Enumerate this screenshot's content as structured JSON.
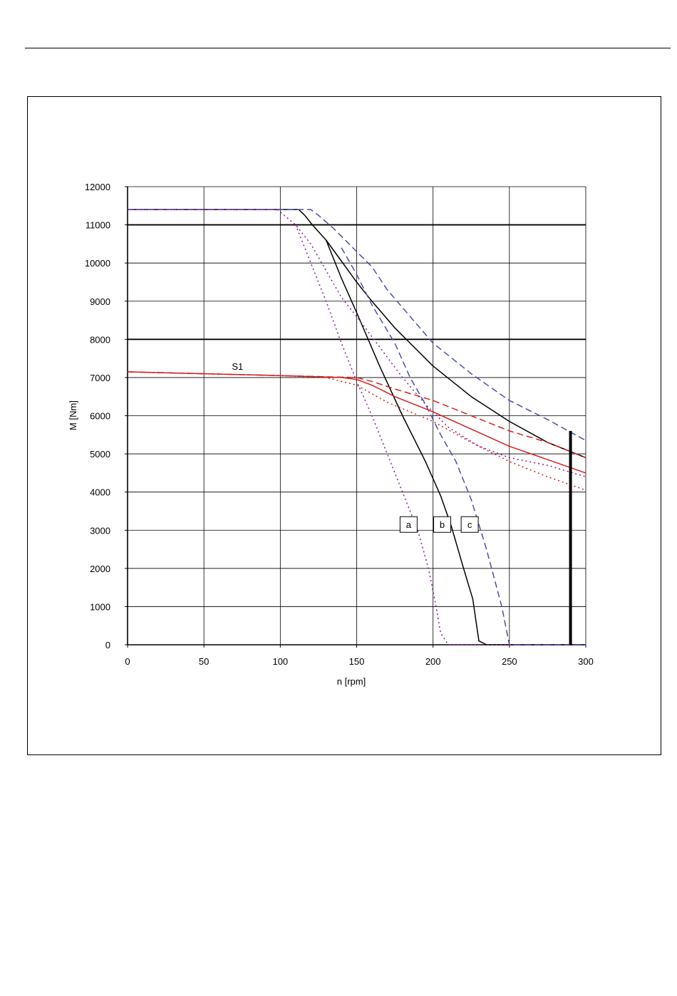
{
  "chart_data": {
    "type": "line",
    "xlabel": "n [rpm]",
    "ylabel": "M [Nm]",
    "xlim": [
      0,
      300
    ],
    "ylim": [
      0,
      12000
    ],
    "x_ticks": [
      "0",
      "50",
      "100",
      "150",
      "200",
      "250",
      "300"
    ],
    "y_ticks": [
      "0",
      "1000",
      "2000",
      "3000",
      "4000",
      "5000",
      "6000",
      "7000",
      "8000",
      "9000",
      "10000",
      "11000",
      "12000"
    ],
    "grid": true,
    "reference_lines": [
      {
        "y": 11000,
        "bold": true
      },
      {
        "y": 8000,
        "bold": true
      }
    ],
    "vertical_marker": {
      "x": 290,
      "y_top": 5600
    },
    "series": [
      {
        "color": "#000000",
        "dash": "solid",
        "points": [
          [
            0,
            11400
          ],
          [
            112,
            11400
          ],
          [
            116,
            11250
          ],
          [
            121,
            11000
          ],
          [
            130,
            10600
          ],
          [
            140,
            10050
          ],
          [
            150,
            9500
          ],
          [
            160,
            9000
          ],
          [
            175,
            8300
          ],
          [
            190,
            7700
          ],
          [
            200,
            7300
          ],
          [
            225,
            6500
          ],
          [
            250,
            5850
          ],
          [
            275,
            5300
          ],
          [
            300,
            4900
          ]
        ]
      },
      {
        "color": "#000000",
        "dash": "solid",
        "points": [
          [
            130,
            10600
          ],
          [
            140,
            9600
          ],
          [
            150,
            8700
          ],
          [
            165,
            7300
          ],
          [
            180,
            6000
          ],
          [
            195,
            4800
          ],
          [
            205,
            3900
          ],
          [
            212,
            3100
          ],
          [
            220,
            2000
          ],
          [
            226,
            1200
          ],
          [
            230,
            100
          ],
          [
            235,
            0
          ],
          [
            300,
            0
          ]
        ]
      },
      {
        "color": "#4a4ea6",
        "dash": "long",
        "points": [
          [
            0,
            11400
          ],
          [
            120,
            11400
          ],
          [
            125,
            11250
          ],
          [
            135,
            10900
          ],
          [
            150,
            10300
          ],
          [
            160,
            9900
          ],
          [
            170,
            9300
          ],
          [
            185,
            8600
          ],
          [
            200,
            7900
          ],
          [
            225,
            7100
          ],
          [
            250,
            6400
          ],
          [
            275,
            5900
          ],
          [
            300,
            5350
          ]
        ]
      },
      {
        "color": "#4a4ea6",
        "dash": "long",
        "points": [
          [
            140,
            10400
          ],
          [
            150,
            9700
          ],
          [
            160,
            8900
          ],
          [
            175,
            7900
          ],
          [
            185,
            7000
          ],
          [
            195,
            6300
          ],
          [
            205,
            5500
          ],
          [
            215,
            4800
          ],
          [
            225,
            3800
          ],
          [
            235,
            2500
          ],
          [
            245,
            1000
          ],
          [
            250,
            0
          ],
          [
            300,
            0
          ]
        ]
      },
      {
        "color": "#8b1a9a",
        "dash": "dot",
        "points": [
          [
            0,
            11400
          ],
          [
            98,
            11400
          ],
          [
            110,
            11000
          ],
          [
            120,
            10500
          ],
          [
            130,
            9800
          ],
          [
            140,
            9100
          ],
          [
            150,
            8600
          ],
          [
            165,
            7800
          ],
          [
            180,
            7000
          ],
          [
            195,
            6300
          ],
          [
            210,
            5700
          ],
          [
            230,
            5200
          ],
          [
            250,
            4900
          ],
          [
            275,
            4700
          ],
          [
            300,
            4400
          ]
        ]
      },
      {
        "color": "#8b1a9a",
        "dash": "dot",
        "points": [
          [
            110,
            11000
          ],
          [
            120,
            10000
          ],
          [
            130,
            9000
          ],
          [
            140,
            7900
          ],
          [
            150,
            6900
          ],
          [
            160,
            6000
          ],
          [
            170,
            5000
          ],
          [
            180,
            4000
          ],
          [
            190,
            3000
          ],
          [
            197,
            2000
          ],
          [
            202,
            1000
          ],
          [
            205,
            300
          ],
          [
            210,
            0
          ],
          [
            300,
            0
          ]
        ]
      },
      {
        "color": "#d42020",
        "dash": "solid",
        "points": [
          [
            0,
            7150
          ],
          [
            50,
            7100
          ],
          [
            100,
            7050
          ],
          [
            140,
            7000
          ],
          [
            150,
            6950
          ],
          [
            160,
            6800
          ],
          [
            175,
            6500
          ],
          [
            200,
            6100
          ],
          [
            225,
            5650
          ],
          [
            250,
            5200
          ],
          [
            275,
            4850
          ],
          [
            300,
            4500
          ]
        ]
      },
      {
        "color": "#d42020",
        "dash": "long",
        "points": [
          [
            0,
            7150
          ],
          [
            50,
            7100
          ],
          [
            100,
            7050
          ],
          [
            150,
            7000
          ],
          [
            160,
            6900
          ],
          [
            175,
            6700
          ],
          [
            200,
            6400
          ],
          [
            225,
            6000
          ],
          [
            250,
            5600
          ],
          [
            275,
            5300
          ],
          [
            300,
            4900
          ]
        ]
      },
      {
        "color": "#d42020",
        "dash": "dot",
        "points": [
          [
            0,
            7150
          ],
          [
            50,
            7100
          ],
          [
            100,
            7050
          ],
          [
            130,
            7000
          ],
          [
            150,
            6800
          ],
          [
            170,
            6350
          ],
          [
            200,
            5850
          ],
          [
            225,
            5300
          ],
          [
            250,
            4800
          ],
          [
            275,
            4400
          ],
          [
            300,
            4050
          ]
        ]
      }
    ],
    "annotations": [
      {
        "text": "S1",
        "x": 72,
        "y": 7300,
        "boxed": false
      },
      {
        "text": "a",
        "x": 184,
        "y": 3150,
        "boxed": true
      },
      {
        "text": "b",
        "x": 206,
        "y": 3150,
        "boxed": true
      },
      {
        "text": "c",
        "x": 224,
        "y": 3150,
        "boxed": true
      }
    ]
  }
}
